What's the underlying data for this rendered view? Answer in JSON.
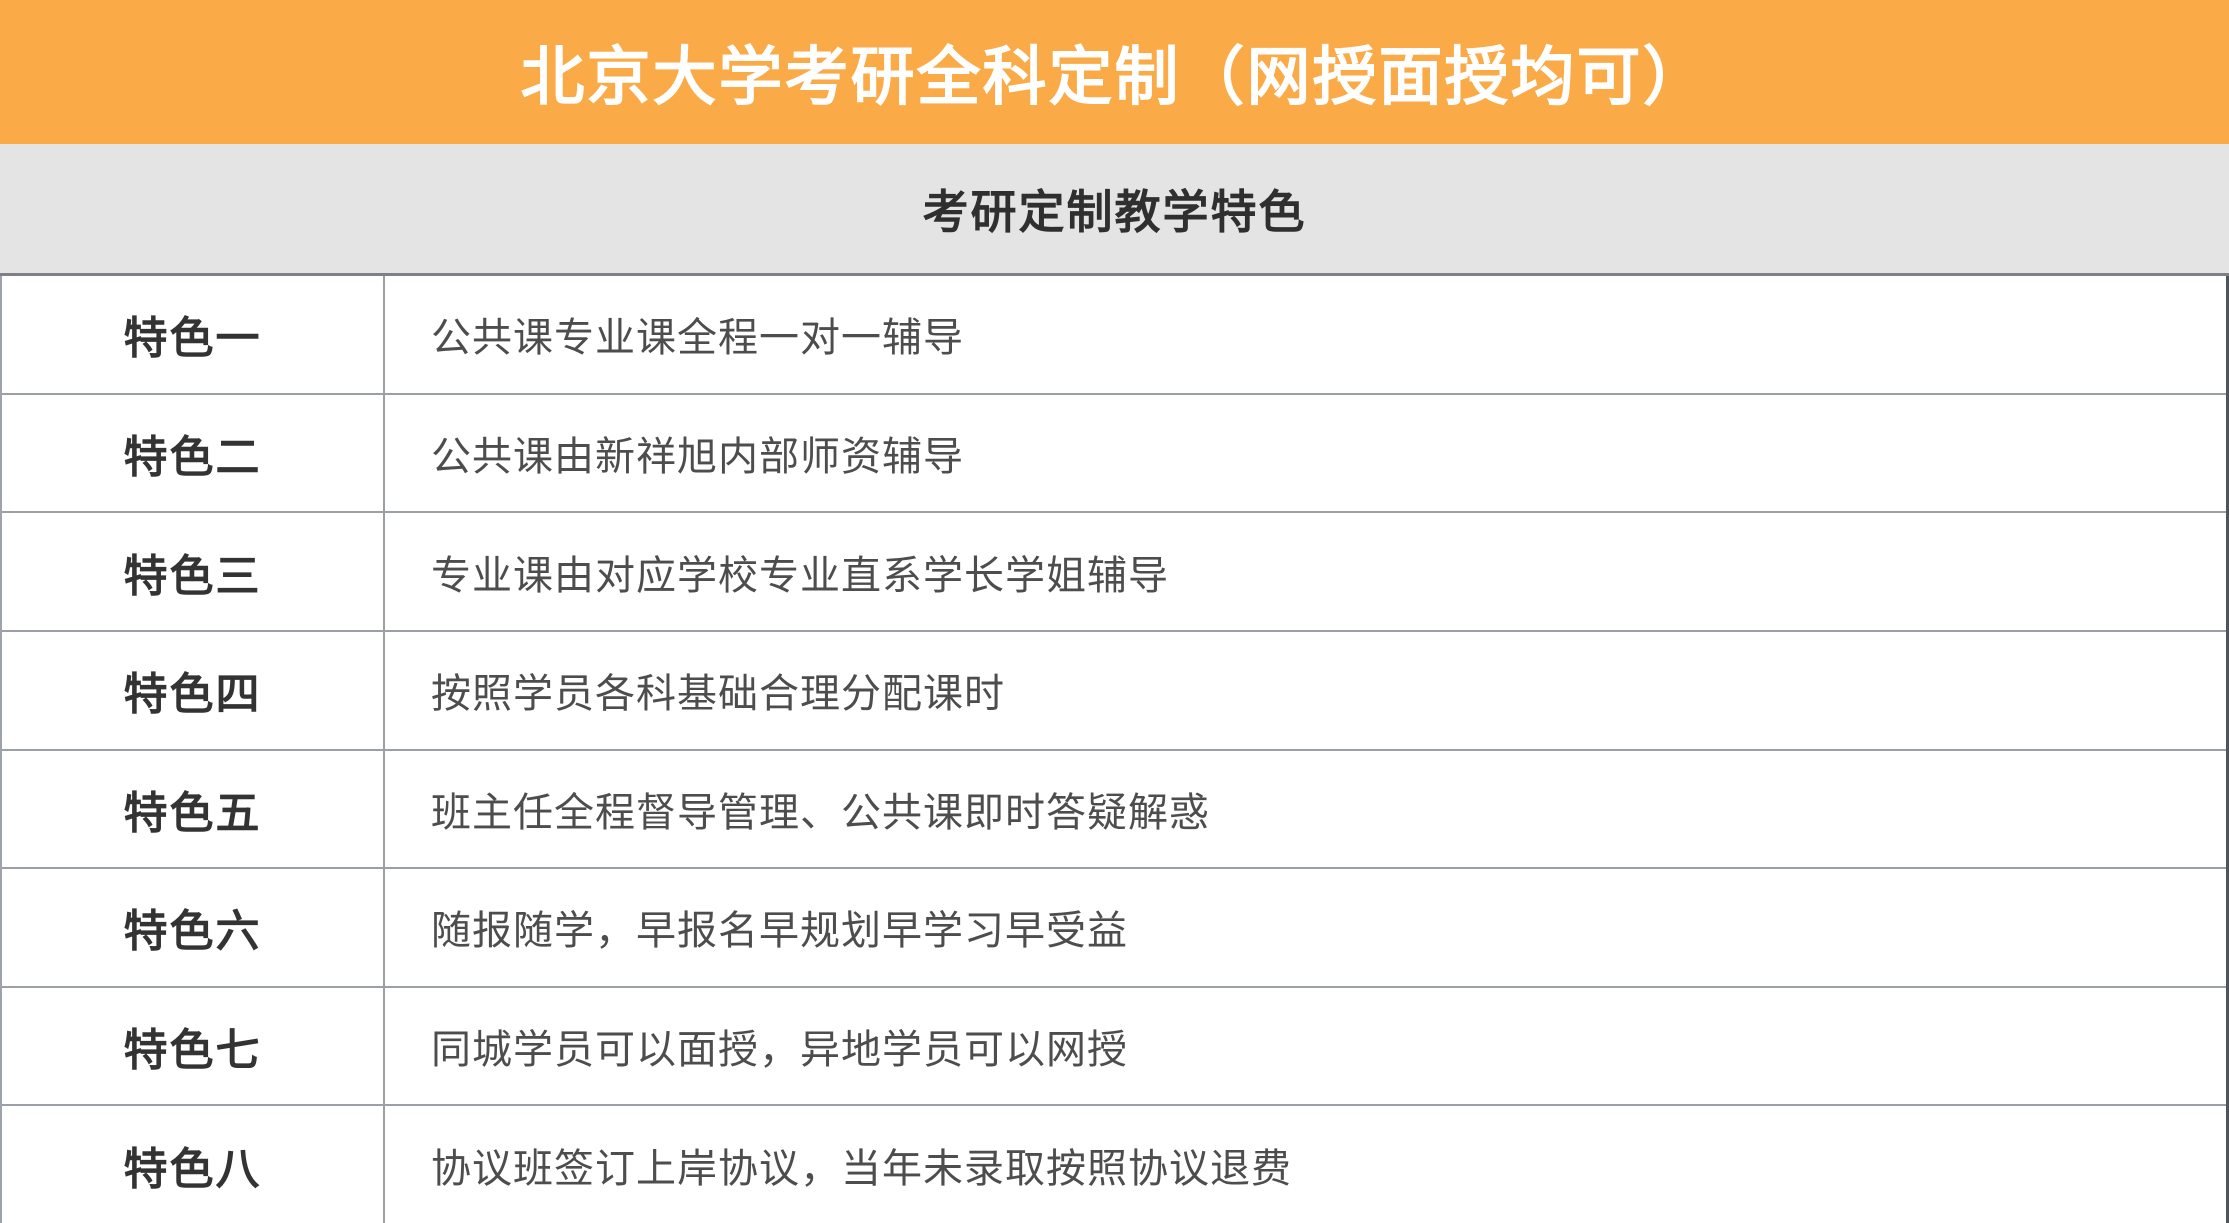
{
  "colors": {
    "banner_bg": "#FAAA46",
    "banner_text": "#FFFFFF",
    "subheader_bg": "#E4E4E4",
    "subheader_text": "#2F2F2F",
    "row_bg": "#FFFFFF",
    "label_text": "#333333",
    "content_text": "#4D4D4D",
    "grid_line": "#9AA0A6"
  },
  "banner": {
    "title": "北京大学考研全科定制（网授面授均可）"
  },
  "subheader": {
    "title": "考研定制教学特色"
  },
  "table": {
    "rows": [
      {
        "label": "特色一",
        "content": "公共课专业课全程一对一辅导"
      },
      {
        "label": "特色二",
        "content": "公共课由新祥旭内部师资辅导"
      },
      {
        "label": "特色三",
        "content": "专业课由对应学校专业直系学长学姐辅导"
      },
      {
        "label": "特色四",
        "content": "按照学员各科基础合理分配课时"
      },
      {
        "label": "特色五",
        "content": "班主任全程督导管理、公共课即时答疑解惑"
      },
      {
        "label": "特色六",
        "content": "随报随学，早报名早规划早学习早受益"
      },
      {
        "label": "特色七",
        "content": "同城学员可以面授，异地学员可以网授"
      },
      {
        "label": "特色八",
        "content": "协议班签订上岸协议，当年未录取按照协议退费"
      }
    ]
  }
}
